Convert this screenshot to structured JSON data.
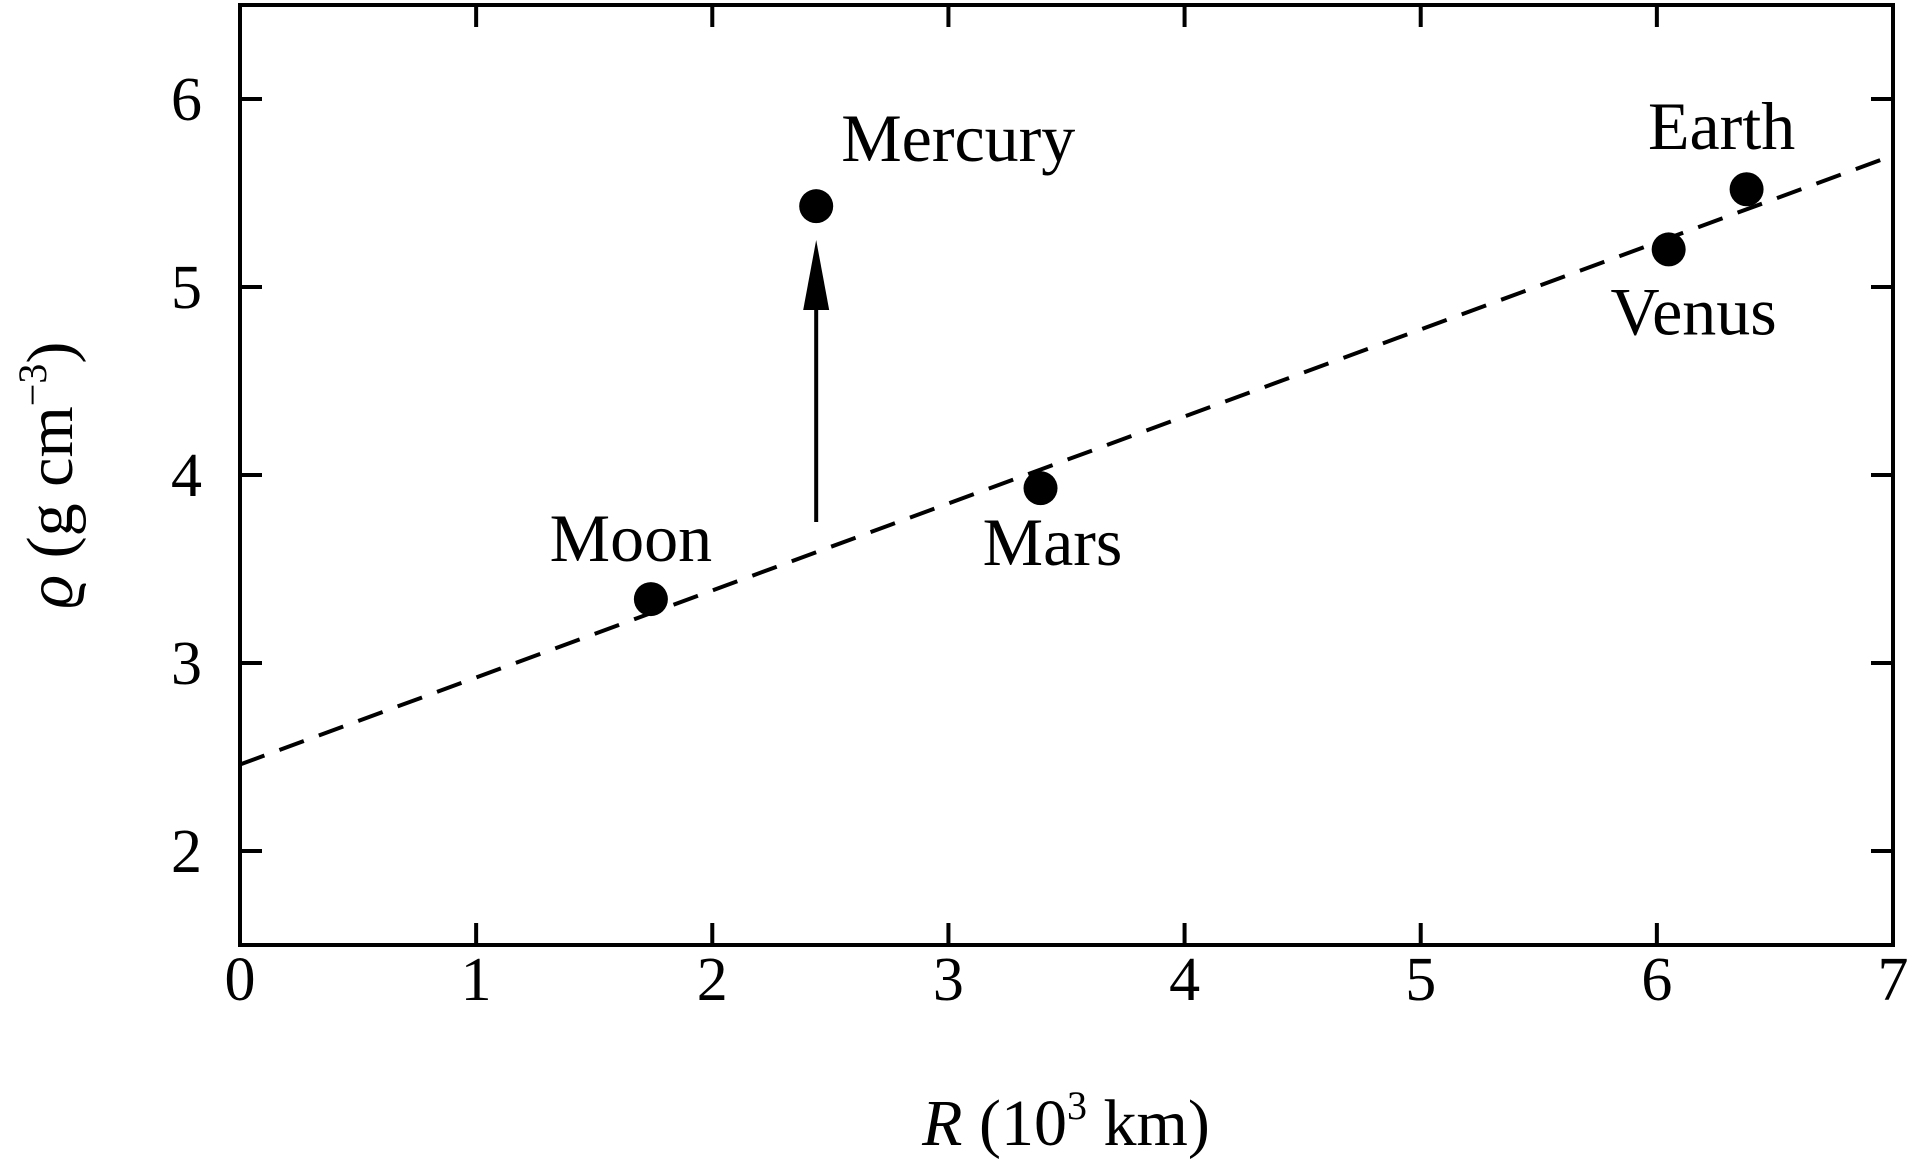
{
  "chart_data": {
    "type": "scatter",
    "title": "",
    "xlabel": {
      "symbol": "R",
      "unit_open": " (10",
      "unit_exp": "3",
      "unit_close": " km)"
    },
    "ylabel": {
      "symbol": "ϱ",
      "unit_open": " (g cm",
      "unit_exp": "−3",
      "unit_close": ")"
    },
    "xlim": [
      0,
      7
    ],
    "ylim": [
      1.5,
      6.5
    ],
    "x_ticks": [
      0,
      1,
      2,
      3,
      4,
      5,
      6,
      7
    ],
    "y_ticks": [
      2,
      3,
      4,
      5,
      6
    ],
    "grid": false,
    "points": [
      {
        "name": "Moon",
        "x": 1.74,
        "y": 3.34
      },
      {
        "name": "Mercury",
        "x": 2.44,
        "y": 5.43
      },
      {
        "name": "Mars",
        "x": 3.39,
        "y": 3.93
      },
      {
        "name": "Venus",
        "x": 6.05,
        "y": 5.2
      },
      {
        "name": "Earth",
        "x": 6.38,
        "y": 5.52
      }
    ],
    "trend_line": {
      "style": "dashed",
      "x": [
        0,
        7
      ],
      "y": [
        2.46,
        5.7
      ]
    },
    "annotation_arrow": {
      "x": 2.44,
      "y_from": 3.75,
      "y_to": 5.25
    }
  }
}
